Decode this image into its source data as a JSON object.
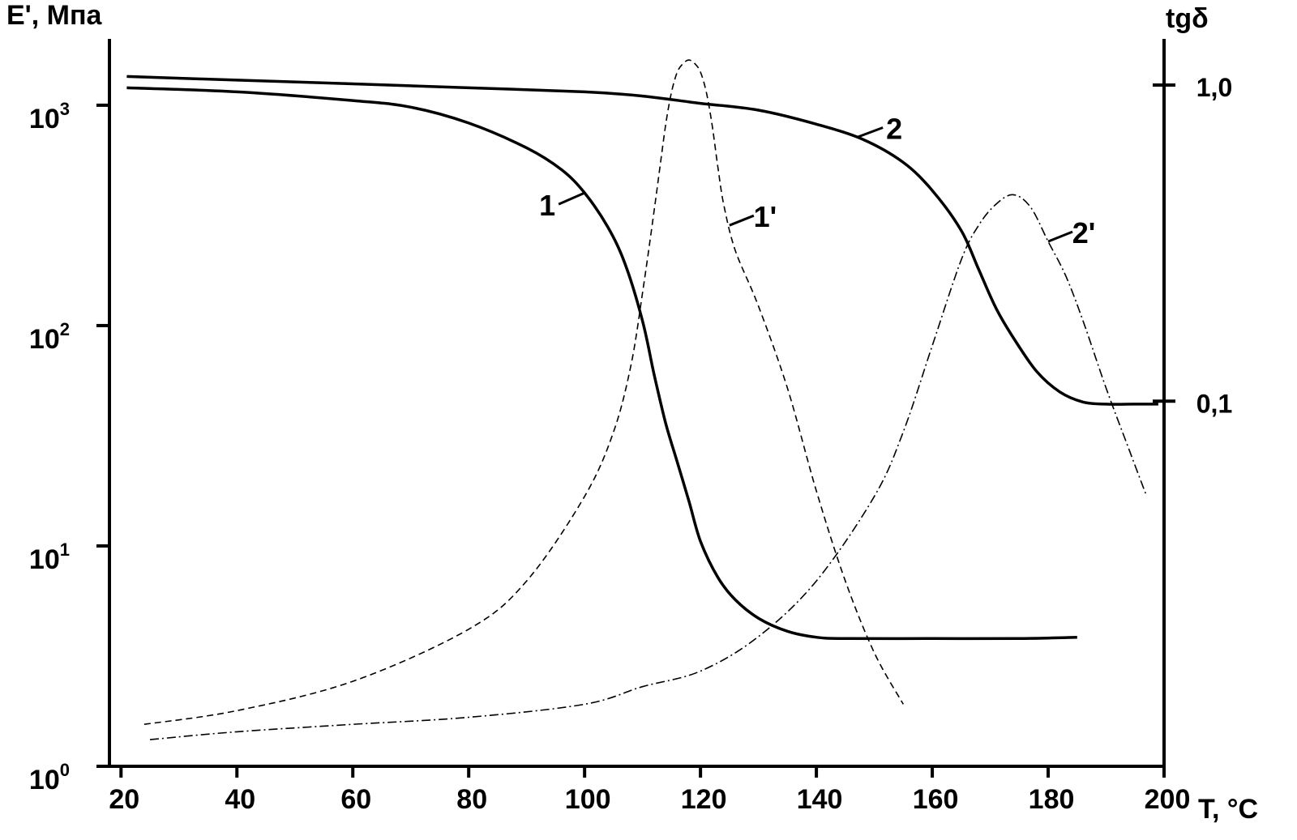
{
  "chart_data": {
    "type": "line",
    "left_axis_title": "E', Мпа",
    "right_axis_title": "tgδ",
    "x_axis_title": "T, °C",
    "x_ticks": [
      20,
      40,
      60,
      80,
      100,
      120,
      140,
      160,
      180,
      200
    ],
    "xlim": [
      18,
      200
    ],
    "left_scale": "log",
    "left_ylim": [
      1,
      2000
    ],
    "left_ticks": [
      {
        "base": "10",
        "exp": "0"
      },
      {
        "base": "10",
        "exp": "1"
      },
      {
        "base": "10",
        "exp": "2"
      },
      {
        "base": "10",
        "exp": "3"
      }
    ],
    "right_scale": "log",
    "right_ylim": [
      0.007,
      1.4
    ],
    "right_ticks": [
      "1,0",
      "0,1"
    ],
    "grid": false,
    "series": [
      {
        "name": "1",
        "axis": "left",
        "style": "solid",
        "x": [
          21,
          40,
          60,
          70,
          80,
          90,
          96,
          100,
          104,
          107,
          110,
          112,
          114,
          116,
          118,
          120,
          123,
          126,
          130,
          135,
          140,
          145,
          160,
          175,
          185
        ],
        "y": [
          1200,
          1150,
          1050,
          980,
          830,
          640,
          510,
          400,
          280,
          190,
          105,
          60,
          36,
          24,
          16,
          10.5,
          7.2,
          5.7,
          4.7,
          4.1,
          3.85,
          3.8,
          3.8,
          3.8,
          3.85
        ]
      },
      {
        "name": "1'",
        "axis": "right",
        "style": "dashed",
        "x": [
          24,
          40,
          60,
          80,
          90,
          100,
          105,
          108,
          110,
          112,
          113,
          114,
          115,
          116,
          117,
          118,
          119,
          120,
          121,
          122,
          123,
          124,
          126,
          130,
          135,
          140,
          145,
          150,
          155
        ],
        "y": [
          0.0095,
          0.0105,
          0.013,
          0.019,
          0.027,
          0.05,
          0.08,
          0.13,
          0.22,
          0.4,
          0.55,
          0.75,
          0.95,
          1.1,
          1.17,
          1.2,
          1.17,
          1.1,
          0.95,
          0.75,
          0.55,
          0.42,
          0.3,
          0.2,
          0.11,
          0.052,
          0.027,
          0.016,
          0.011
        ]
      },
      {
        "name": "2",
        "axis": "left",
        "style": "solid",
        "x": [
          21,
          40,
          60,
          80,
          100,
          110,
          120,
          130,
          140,
          148,
          155,
          160,
          165,
          168,
          171,
          174,
          178,
          182,
          186,
          190,
          195,
          199
        ],
        "y": [
          1350,
          1300,
          1250,
          1200,
          1150,
          1100,
          1020,
          950,
          820,
          700,
          550,
          410,
          270,
          180,
          120,
          88,
          62,
          50,
          45,
          44,
          44,
          44
        ]
      },
      {
        "name": "2'",
        "axis": "right",
        "style": "dashdot",
        "x": [
          25,
          40,
          60,
          80,
          100,
          110,
          120,
          130,
          140,
          150,
          155,
          160,
          165,
          168,
          171,
          174,
          177,
          180,
          183,
          186,
          190,
          194,
          197
        ],
        "y": [
          0.0085,
          0.009,
          0.0095,
          0.01,
          0.011,
          0.0125,
          0.014,
          0.018,
          0.027,
          0.05,
          0.08,
          0.15,
          0.28,
          0.36,
          0.42,
          0.45,
          0.41,
          0.32,
          0.25,
          0.18,
          0.11,
          0.07,
          0.05
        ]
      }
    ],
    "curve_labels": [
      {
        "text": "1",
        "series": 0,
        "at_x": 100
      },
      {
        "text": "1'",
        "series": 1,
        "at_x": 125
      },
      {
        "text": "2",
        "series": 2,
        "at_x": 147
      },
      {
        "text": "2'",
        "series": 3,
        "at_x": 180
      }
    ]
  }
}
